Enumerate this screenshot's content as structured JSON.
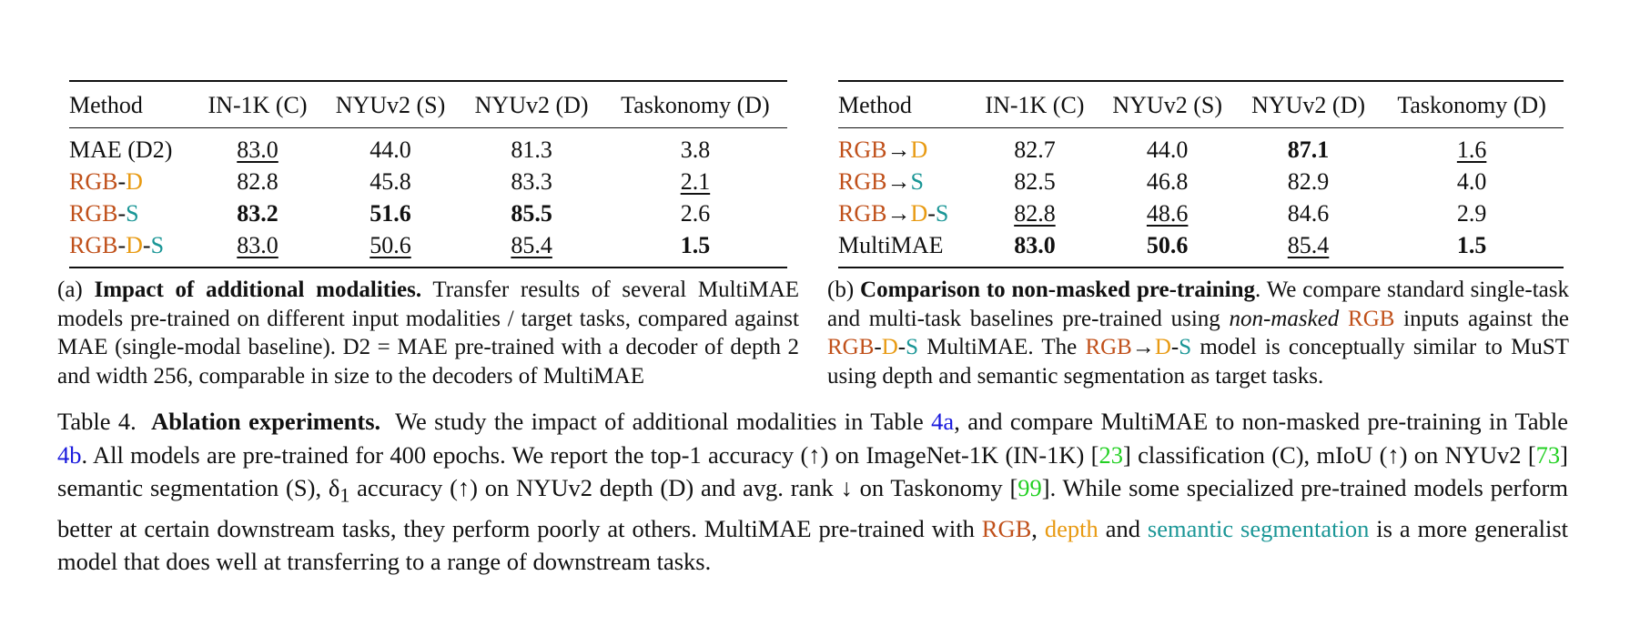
{
  "colors": {
    "rgb": "#c0501a",
    "depth": "#e89a12",
    "semseg": "#1a9696",
    "table_ref_link": "#1a1add",
    "citation_link": "#22d022"
  },
  "table_a": {
    "columns": [
      "Method",
      "IN-1K (C)",
      "NYUv2 (S)",
      "NYUv2 (D)",
      "Taskonomy (D)"
    ],
    "rows": [
      {
        "method": "MAE (D2)",
        "values": [
          "83.0",
          "44.0",
          "81.3",
          "3.8"
        ],
        "styles": [
          "u",
          "",
          "",
          ""
        ]
      },
      {
        "method_parts": [
          "RGB",
          "-",
          "D"
        ],
        "values": [
          "82.8",
          "45.8",
          "83.3",
          "2.1"
        ],
        "styles": [
          "",
          "",
          "",
          "u"
        ]
      },
      {
        "method_parts": [
          "RGB",
          "-",
          "S"
        ],
        "values": [
          "83.2",
          "51.6",
          "85.5",
          "2.6"
        ],
        "styles": [
          "b",
          "b",
          "b",
          ""
        ]
      },
      {
        "method_parts": [
          "RGB",
          "-",
          "D",
          "-",
          "S"
        ],
        "values": [
          "83.0",
          "50.6",
          "85.4",
          "1.5"
        ],
        "styles": [
          "u",
          "u",
          "u",
          "b"
        ]
      }
    ],
    "caption": {
      "label": "(a)",
      "title": "Impact of additional modalities.",
      "text": "Transfer results of several MultiMAE models pre-trained on different input modalities / target tasks, compared against MAE (single-modal baseline). D2 = MAE pre-trained with a decoder of depth 2 and width 256, comparable in size to the decoders of MultiMAE"
    }
  },
  "table_b": {
    "columns": [
      "Method",
      "IN-1K (C)",
      "NYUv2 (S)",
      "NYUv2 (D)",
      "Taskonomy (D)"
    ],
    "rows": [
      {
        "method_parts": [
          "RGB",
          "→",
          "D"
        ],
        "values": [
          "82.7",
          "44.0",
          "87.1",
          "1.6"
        ],
        "styles": [
          "",
          "",
          "b",
          "u"
        ]
      },
      {
        "method_parts": [
          "RGB",
          "→",
          "S"
        ],
        "values": [
          "82.5",
          "46.8",
          "82.9",
          "4.0"
        ],
        "styles": [
          "",
          "",
          "",
          ""
        ]
      },
      {
        "method_parts": [
          "RGB",
          "→",
          "D",
          "-",
          "S"
        ],
        "values": [
          "82.8",
          "48.6",
          "84.6",
          "2.9"
        ],
        "styles": [
          "u",
          "u",
          "",
          ""
        ]
      },
      {
        "method": "MultiMAE",
        "values": [
          "83.0",
          "50.6",
          "85.4",
          "1.5"
        ],
        "styles": [
          "b",
          "b",
          "u",
          "b"
        ]
      }
    ],
    "caption": {
      "label": "(b)",
      "title": "Comparison to non-masked pre-training",
      "title_end": ".",
      "text_1": "We compare standard single-task and multi-task baselines pre-trained using",
      "italic": "non-masked",
      "rgb": "RGB",
      "text_2": "inputs against the",
      "mod_rgb": "RGB",
      "dash": "-",
      "mod_d": "D",
      "mod_s": "S",
      "text_3": "MultiMAE.  The",
      "arrow": "→",
      "text_4": "model is conceptually similar to MuST using depth and semantic segmentation as target tasks."
    }
  },
  "main_caption": {
    "label": "Table 4.",
    "title": "Ablation experiments.",
    "t1": "We study the impact of additional modalities in Table",
    "ref_a": "4a",
    "t2": ", and compare MultiMAE to non-masked pre-training in Table",
    "ref_b": "4b",
    "t3": ".  All models are pre-trained for 400 epochs.  We report the top-1 accuracy (↑) on ImageNet-1K (IN-1K) [",
    "cite_1": "23",
    "t4": "] classification (C), mIoU (↑) on NYUv2 [",
    "cite_2": "73",
    "t5": "] semantic segmentation (S), δ",
    "sub": "1",
    "t6": " accuracy (↑) on NYUv2 depth (D) and avg. rank ↓ on Taskonomy [",
    "cite_3": "99",
    "t7": "]. While some specialized pre-trained models perform better at certain downstream tasks, they perform poorly at others. MultiMAE pre-trained with",
    "rgb": "RGB",
    "comma": ",",
    "depth": "depth",
    "and": "and",
    "semseg": "semantic segmentation",
    "t8": "is a more generalist model that does well at transferring to a range of downstream tasks."
  }
}
